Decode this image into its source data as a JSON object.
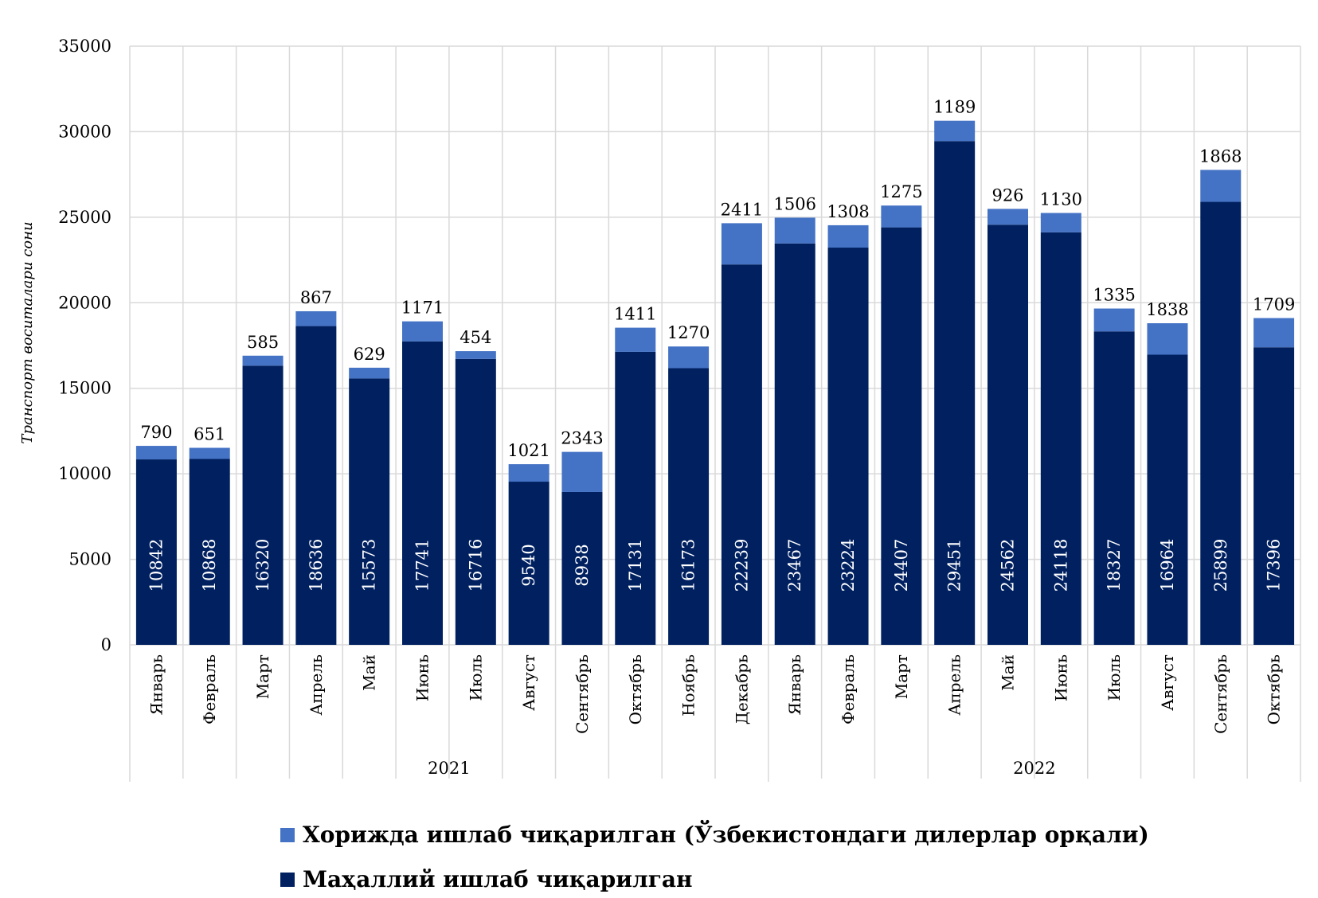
{
  "colors": {
    "foreign": "#4472C4",
    "local": "#002060",
    "grid": "#D9D9D9"
  },
  "chart_data": {
    "type": "bar",
    "stacked": true,
    "title": "",
    "xlabel": "",
    "ylabel": "Транспорт воситалари сони",
    "ylim": [
      0,
      35000
    ],
    "yticks": [
      0,
      5000,
      10000,
      15000,
      20000,
      25000,
      30000,
      35000
    ],
    "grid": true,
    "legend_position": "bottom",
    "groups": [
      {
        "label": "2021",
        "count": 12
      },
      {
        "label": "2022",
        "count": 10
      }
    ],
    "categories": [
      "Январь",
      "Февраль",
      "Март",
      "Апрель",
      "Май",
      "Июнь",
      "Июль",
      "Август",
      "Сентябрь",
      "Октябрь",
      "Ноябрь",
      "Декабрь",
      "Январь",
      "Февраль",
      "Март",
      "Апрель",
      "Май",
      "Июнь",
      "Июль",
      "Август",
      "Сентябрь",
      "Октябрь"
    ],
    "series": [
      {
        "name": "Маҳаллий ишлаб чиқарилган",
        "color": "#002060",
        "values": [
          10842,
          10868,
          16320,
          18636,
          15573,
          17741,
          16716,
          9540,
          8938,
          17131,
          16173,
          22239,
          23467,
          23224,
          24407,
          29451,
          24562,
          24118,
          18327,
          16964,
          25899,
          17396
        ]
      },
      {
        "name": "Хорижда ишлаб чиқарилган (Ўзбекистондаги дилерлар орқали)",
        "color": "#4472C4",
        "values": [
          790,
          651,
          585,
          867,
          629,
          1171,
          454,
          1021,
          2343,
          1411,
          1270,
          2411,
          1506,
          1308,
          1275,
          1189,
          926,
          1130,
          1335,
          1838,
          1868,
          1709
        ]
      }
    ]
  },
  "legend": {
    "foreign_label": "Хорижда ишлаб чиқарилган (Ўзбекистондаги дилерлар орқали)",
    "local_label": "Маҳаллий ишлаб чиқарилган"
  }
}
